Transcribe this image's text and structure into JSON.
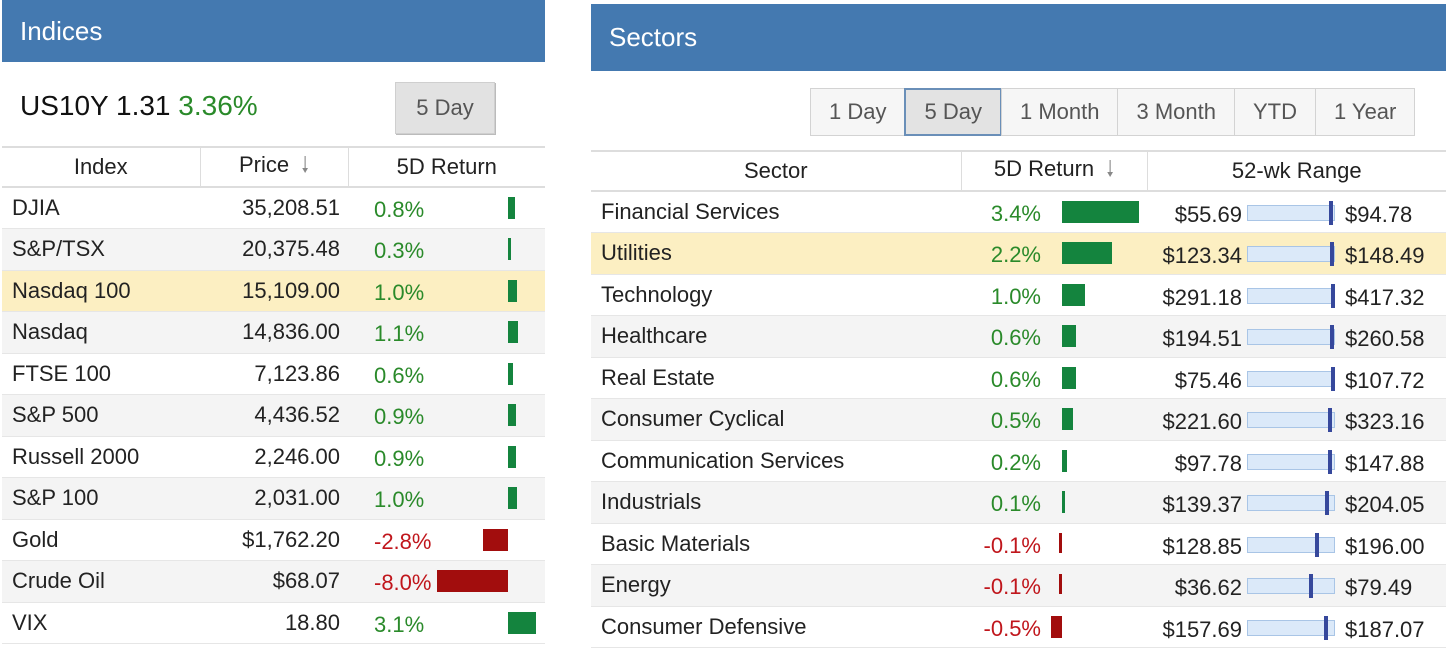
{
  "indices": {
    "title": "Indices",
    "us10y": {
      "label": "US10Y",
      "value": "1.31",
      "change": "3.36%"
    },
    "period_button": "5 Day",
    "columns": {
      "index": "Index",
      "price": "Price",
      "ret": "5D Return"
    },
    "rows": [
      {
        "name": "DJIA",
        "price": "35,208.51",
        "ret": "0.8%",
        "dir": "pos",
        "pct": 0.8
      },
      {
        "name": "S&P/TSX",
        "price": "20,375.48",
        "ret": "0.3%",
        "dir": "pos",
        "pct": 0.3
      },
      {
        "name": "Nasdaq 100",
        "price": "15,109.00",
        "ret": "1.0%",
        "dir": "pos",
        "pct": 1.0,
        "highlight": true
      },
      {
        "name": "Nasdaq",
        "price": "14,836.00",
        "ret": "1.1%",
        "dir": "pos",
        "pct": 1.1
      },
      {
        "name": "FTSE 100",
        "price": "7,123.86",
        "ret": "0.6%",
        "dir": "pos",
        "pct": 0.6
      },
      {
        "name": "S&P 500",
        "price": "4,436.52",
        "ret": "0.9%",
        "dir": "pos",
        "pct": 0.9
      },
      {
        "name": "Russell 2000",
        "price": "2,246.00",
        "ret": "0.9%",
        "dir": "pos",
        "pct": 0.9
      },
      {
        "name": "S&P 100",
        "price": "2,031.00",
        "ret": "1.0%",
        "dir": "pos",
        "pct": 1.0
      },
      {
        "name": "Gold",
        "price": "$1,762.20",
        "ret": "-2.8%",
        "dir": "neg",
        "pct": -2.8
      },
      {
        "name": "Crude Oil",
        "price": "$68.07",
        "ret": "-8.0%",
        "dir": "neg",
        "pct": -8.0
      },
      {
        "name": "VIX",
        "price": "18.80",
        "ret": "3.1%",
        "dir": "pos",
        "pct": 3.1
      }
    ]
  },
  "sectors": {
    "title": "Sectors",
    "range_buttons": [
      "1 Day",
      "5 Day",
      "1 Month",
      "3 Month",
      "YTD",
      "1 Year"
    ],
    "active_range": "5 Day",
    "columns": {
      "sector": "Sector",
      "ret": "5D Return",
      "range": "52-wk Range"
    },
    "rows": [
      {
        "name": "Financial Services",
        "ret": "3.4%",
        "dir": "pos",
        "pct": 3.4,
        "low": "$55.69",
        "high": "$94.78",
        "pos": 0.97
      },
      {
        "name": "Utilities",
        "ret": "2.2%",
        "dir": "pos",
        "pct": 2.2,
        "low": "$123.34",
        "high": "$148.49",
        "pos": 0.98,
        "highlight": true
      },
      {
        "name": "Technology",
        "ret": "1.0%",
        "dir": "pos",
        "pct": 1.0,
        "low": "$291.18",
        "high": "$417.32",
        "pos": 0.99
      },
      {
        "name": "Healthcare",
        "ret": "0.6%",
        "dir": "pos",
        "pct": 0.6,
        "low": "$194.51",
        "high": "$260.58",
        "pos": 0.98
      },
      {
        "name": "Real Estate",
        "ret": "0.6%",
        "dir": "pos",
        "pct": 0.6,
        "low": "$75.46",
        "high": "$107.72",
        "pos": 0.99
      },
      {
        "name": "Consumer Cyclical",
        "ret": "0.5%",
        "dir": "pos",
        "pct": 0.5,
        "low": "$221.60",
        "high": "$323.16",
        "pos": 0.95
      },
      {
        "name": "Communication Services",
        "ret": "0.2%",
        "dir": "pos",
        "pct": 0.2,
        "low": "$97.78",
        "high": "$147.88",
        "pos": 0.95
      },
      {
        "name": "Industrials",
        "ret": "0.1%",
        "dir": "pos",
        "pct": 0.1,
        "low": "$139.37",
        "high": "$204.05",
        "pos": 0.92
      },
      {
        "name": "Basic Materials",
        "ret": "-0.1%",
        "dir": "neg",
        "pct": -0.1,
        "low": "$128.85",
        "high": "$196.00",
        "pos": 0.8
      },
      {
        "name": "Energy",
        "ret": "-0.1%",
        "dir": "neg",
        "pct": -0.1,
        "low": "$36.62",
        "high": "$79.49",
        "pos": 0.73
      },
      {
        "name": "Consumer Defensive",
        "ret": "-0.5%",
        "dir": "neg",
        "pct": -0.5,
        "low": "$157.69",
        "high": "$187.07",
        "pos": 0.9
      }
    ]
  },
  "colors": {
    "header": "#4479b0",
    "positive": "#2a8a2a",
    "negative": "#c0161c",
    "bar_pos": "#14843e",
    "bar_neg": "#a20d0d",
    "highlight": "#fcefc2"
  }
}
